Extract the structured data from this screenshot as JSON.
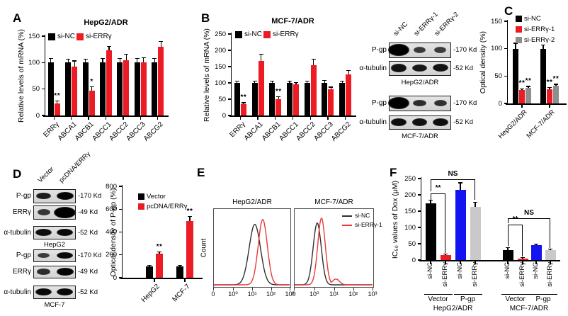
{
  "colors": {
    "black": "#000000",
    "red": "#ED1C24",
    "gray": "#8E8E8E",
    "lightgray": "#C9C9C9",
    "blue": "#1414F0",
    "curve_black": "#303030",
    "curve_red": "#E8393B"
  },
  "panels": {
    "A": {
      "letter": "A"
    },
    "B": {
      "letter": "B"
    },
    "C": {
      "letter": "C",
      "blot": {
        "lanes": [
          "si-NC",
          "si-ERRγ-1",
          "si-ERRγ-2"
        ],
        "groups": [
          {
            "name": "HepG2/ADR",
            "rows": [
              {
                "label": "P-gp",
                "kd": "-170 Kd",
                "bands": [
                  1,
                  0.42,
                  0.38
                ]
              },
              {
                "label": "α-tubulin",
                "kd": "-52 Kd",
                "bands": [
                  0.82,
                  0.75,
                  0.8
                ]
              }
            ]
          },
          {
            "name": "MCF-7/ADR",
            "rows": [
              {
                "label": "P-gp",
                "kd": "-170 Kd",
                "bands": [
                  1,
                  0.55,
                  0.5
                ]
              },
              {
                "label": "α-tubulin",
                "kd": "-52 Kd",
                "bands": [
                  0.85,
                  0.82,
                  0.85
                ]
              }
            ]
          }
        ]
      }
    },
    "D": {
      "letter": "D",
      "blot": {
        "lanes": [
          "Vector",
          "pcDNA/ERRγ"
        ],
        "groups": [
          {
            "name": "HepG2",
            "rows": [
              {
                "label": "P-gp",
                "kd": "-170 Kd",
                "bands": [
                  0.7,
                  0.95
                ]
              },
              {
                "label": "ERRγ",
                "kd": "-49 Kd",
                "bands": [
                  0.45,
                  1
                ]
              },
              {
                "label": "α-tubulin",
                "kd": "-52 Kd",
                "bands": [
                  0.85,
                  0.9
                ]
              }
            ]
          },
          {
            "name": "MCF-7",
            "rows": [
              {
                "label": "P-gp",
                "kd": "-170 Kd",
                "bands": [
                  0.4,
                  0.9
                ]
              },
              {
                "label": "ERRγ",
                "kd": "-49 Kd",
                "bands": [
                  0.55,
                  0.95
                ]
              },
              {
                "label": "α-tubulin",
                "kd": "-52 Kd",
                "bands": [
                  0.9,
                  0.9
                ]
              }
            ]
          }
        ]
      }
    },
    "E": {
      "letter": "E"
    },
    "F": {
      "letter": "F"
    }
  },
  "chart_data": [
    {
      "id": "A",
      "type": "bar",
      "title": "HepG2/ADR",
      "ylabel": "Relative levels of mRNA (%)",
      "ylim": [
        0,
        150
      ],
      "yticks": [
        0,
        50,
        100,
        150
      ],
      "categories": [
        "ERRγ",
        "ABCA1",
        "ABCB1",
        "ABCC1",
        "ABCC2",
        "ABCC3",
        "ABCG2"
      ],
      "series": [
        {
          "name": "si-NC",
          "color": "#000000",
          "values": [
            100,
            100,
            100,
            100,
            100,
            100,
            100
          ],
          "errors": [
            8,
            7,
            6,
            8,
            8,
            8,
            8
          ],
          "sig": [
            "",
            "",
            "",
            "",
            "",
            "",
            ""
          ]
        },
        {
          "name": "si-ERRγ",
          "color": "#ED1C24",
          "values": [
            23,
            93,
            47,
            123,
            104,
            100,
            130
          ],
          "errors": [
            4,
            10,
            7,
            8,
            12,
            9,
            10
          ],
          "sig": [
            "**",
            "",
            "*",
            "",
            "",
            "",
            ""
          ]
        }
      ],
      "legend": "horizontal"
    },
    {
      "id": "B",
      "type": "bar",
      "title": "MCF-7/ADR",
      "ylabel": "Relative levels of mRNA (%)",
      "ylim": [
        0,
        250
      ],
      "yticks": [
        0,
        50,
        100,
        150,
        200,
        250
      ],
      "categories": [
        "ERRγ",
        "ABCA1",
        "ABCB1",
        "ABCC1",
        "ABCC2",
        "ABCC3",
        "ABCG2"
      ],
      "series": [
        {
          "name": "si-NC",
          "color": "#000000",
          "values": [
            100,
            100,
            100,
            100,
            100,
            100,
            100
          ],
          "errors": [
            6,
            6,
            6,
            5,
            6,
            8,
            6
          ],
          "sig": [
            "",
            "",
            "",
            "",
            "",
            "",
            ""
          ]
        },
        {
          "name": "si-ERRγ",
          "color": "#ED1C24",
          "values": [
            35,
            168,
            50,
            96,
            155,
            80,
            126
          ],
          "errors": [
            4,
            20,
            7,
            5,
            18,
            7,
            12
          ],
          "sig": [
            "**",
            "",
            "**",
            "",
            "",
            "",
            ""
          ]
        }
      ],
      "legend": "horizontal"
    },
    {
      "id": "C",
      "type": "bar",
      "ylabel": "Optical density (%)",
      "ylim": [
        0,
        150
      ],
      "yticks": [
        0,
        50,
        100,
        150
      ],
      "categories": [
        "HepG2/ADR",
        "MCF-7/ADR"
      ],
      "series": [
        {
          "name": "si-NC",
          "color": "#000000",
          "values": [
            100,
            100
          ],
          "errors": [
            10,
            7
          ],
          "sig": [
            "",
            ""
          ]
        },
        {
          "name": "si-ERRγ-1",
          "color": "#ED1C24",
          "values": [
            24,
            26
          ],
          "errors": [
            3,
            3
          ],
          "sig": [
            "**",
            "**"
          ]
        },
        {
          "name": "si-ERRγ-2",
          "color": "#8E8E8E",
          "values": [
            28,
            32
          ],
          "errors": [
            3,
            3
          ],
          "sig": [
            "**",
            "**"
          ]
        }
      ],
      "legend": "vertical"
    },
    {
      "id": "D",
      "type": "bar",
      "ylabel": "Optical density of P-gp (%)",
      "ylim": [
        0,
        800
      ],
      "yticks": [
        0,
        200,
        400,
        600,
        800
      ],
      "categories": [
        "HepG2",
        "MCF-7"
      ],
      "series": [
        {
          "name": "Vector",
          "color": "#000000",
          "values": [
            100,
            100
          ],
          "errors": [
            8,
            8
          ],
          "sig": [
            "",
            ""
          ]
        },
        {
          "name": "pcDNA/ERRγ",
          "color": "#ED1C24",
          "values": [
            210,
            495
          ],
          "errors": [
            15,
            40
          ],
          "sig": [
            "**",
            "**"
          ]
        }
      ],
      "legend": "vertical"
    },
    {
      "id": "E",
      "type": "line",
      "ylabel": "Count",
      "xticks": [
        "0",
        "10⁰",
        "10¹",
        "10²",
        "10³"
      ],
      "legend": [
        "si-NC",
        "si-ERRγ-1"
      ],
      "plots": [
        {
          "title": "HepG2/ADR",
          "curves": [
            {
              "name": "si-NC",
              "color": "#303030",
              "peaks": [
                {
                  "c": 0.54,
                  "s": 0.075,
                  "h": 0.88
                }
              ]
            },
            {
              "name": "si-ERRγ-1",
              "color": "#E8393B",
              "peaks": [
                {
                  "c": 0.645,
                  "s": 0.06,
                  "h": 0.95
                }
              ]
            }
          ]
        },
        {
          "title": "MCF-7/ADR",
          "curves": [
            {
              "name": "si-NC",
              "color": "#303030",
              "peaks": [
                {
                  "c": 0.29,
                  "s": 0.052,
                  "h": 0.9
                }
              ]
            },
            {
              "name": "si-ERRγ-1",
              "color": "#E8393B",
              "peaks": [
                {
                  "c": 0.345,
                  "s": 0.048,
                  "h": 0.97
                },
                {
                  "c": 0.53,
                  "s": 0.045,
                  "h": 0.085
                }
              ]
            }
          ]
        }
      ]
    },
    {
      "id": "F",
      "type": "bar",
      "ylabel": "IC₅₀ values of Dox (μM)",
      "ylim": [
        0,
        250
      ],
      "yticks": [
        0,
        50,
        100,
        150,
        200,
        250
      ],
      "bars": [
        {
          "label": "si-NC",
          "color": "#000000",
          "value": 173,
          "err": 10
        },
        {
          "label": "si-ERRγ",
          "color": "#ED1C24",
          "value": 15,
          "err": 4
        },
        {
          "label": "si-NC",
          "color": "#1414F0",
          "value": 215,
          "err": 22
        },
        {
          "label": "si-ERRγ",
          "color": "#C9C9C9",
          "value": 163,
          "err": 15
        },
        {
          "label": "si-NC",
          "color": "#000000",
          "value": 30,
          "err": 8
        },
        {
          "label": "si-ERRγ",
          "color": "#ED1C24",
          "value": 5,
          "err": 2
        },
        {
          "label": "si-NC",
          "color": "#1414F0",
          "value": 46,
          "err": 3
        },
        {
          "label": "si-ERRγ",
          "color": "#C9C9C9",
          "value": 30,
          "err": 4
        }
      ],
      "group_labels": [
        {
          "text": "Vector",
          "from": 0,
          "to": 1
        },
        {
          "text": "P-gp",
          "from": 2,
          "to": 3
        },
        {
          "text": "Vector",
          "from": 4,
          "to": 5
        },
        {
          "text": "P-gp",
          "from": 6,
          "to": 7
        }
      ],
      "cell_labels": [
        {
          "text": "HepG2/ADR",
          "from": 0,
          "to": 3
        },
        {
          "text": "MCF-7/ADR",
          "from": 4,
          "to": 7
        }
      ],
      "brackets": [
        {
          "x1": 0,
          "x2": 1,
          "y": 205,
          "e1": 181,
          "e2": 22,
          "label": "**"
        },
        {
          "x1": 0,
          "x2": 3,
          "y": 248,
          "e1": 210,
          "e2": 184,
          "label": "NS"
        },
        {
          "x1": 4,
          "x2": 5,
          "y": 109,
          "e1": 43,
          "e2": 10,
          "label": "**"
        },
        {
          "x1": 4,
          "x2": 7,
          "y": 128,
          "e1": 113,
          "e2": 36,
          "label": "NS"
        }
      ]
    }
  ]
}
